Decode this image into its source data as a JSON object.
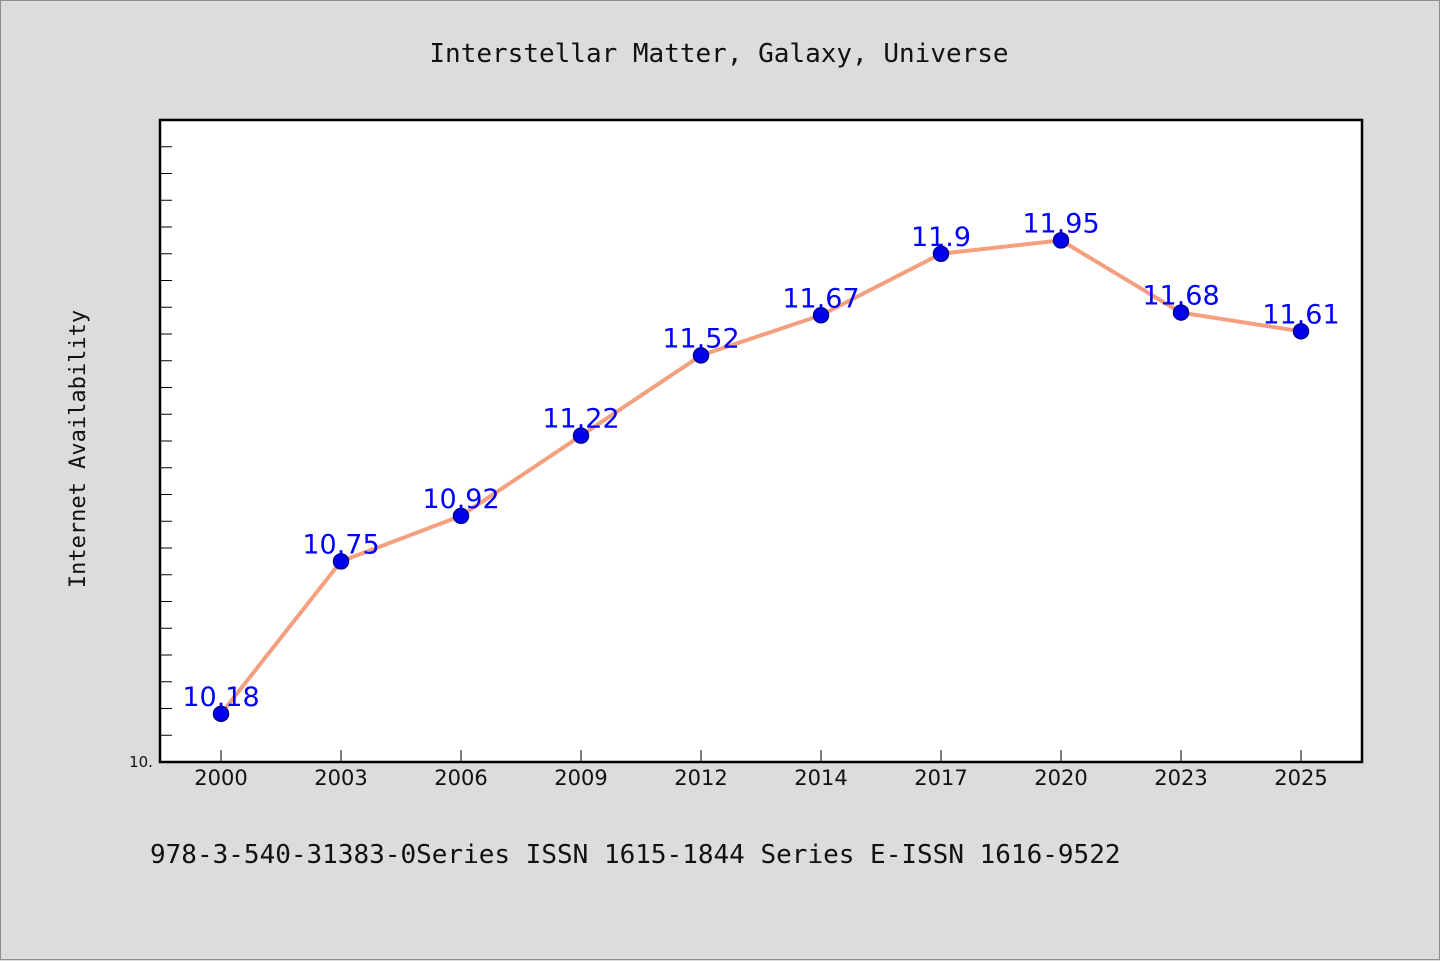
{
  "chart_data": {
    "type": "line",
    "title": "Interstellar Matter, Galaxy, Universe",
    "xlabel": "",
    "ylabel": "Internet Availability",
    "footer": "978-3-540-31383-0Series ISSN 1615-1844 Series E-ISSN 1616-9522",
    "y_min_label": "10.",
    "categories": [
      "2000",
      "2003",
      "2006",
      "2009",
      "2012",
      "2014",
      "2017",
      "2020",
      "2023",
      "2025"
    ],
    "values": [
      10.18,
      10.75,
      10.92,
      11.22,
      11.52,
      11.67,
      11.9,
      11.95,
      11.68,
      11.61
    ],
    "data_labels": [
      "10.18",
      "10.75",
      "10.92",
      "11.22",
      "11.52",
      "11.67",
      "11.9",
      "11.95",
      "11.68",
      "11.61"
    ],
    "ylim": [
      10.0,
      12.4
    ],
    "y_minor_tick_step": 0.1,
    "grid": false,
    "legend": "none",
    "colors": {
      "line": "#f4a07e",
      "marker": "#0000ee",
      "marker_edge": "#00008b",
      "data_label": "#0000ff",
      "plot_background": "#ffffff",
      "page_background": "#dcdcdc"
    }
  }
}
